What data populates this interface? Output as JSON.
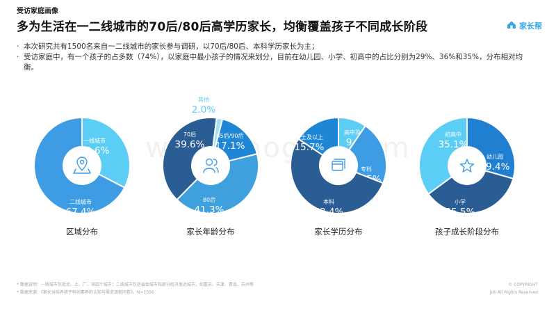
{
  "header": {
    "section_label": "受访家庭画像",
    "title": "多为生活在一二线城市的70后/80后高学历家长，均衡覆盖孩子不同成长阶段",
    "logo_text": "家长帮",
    "logo_icon": "house-cloud-icon"
  },
  "bullets": [
    "本次研究共有1500名来自一二线城市的家长参与调研，以70后/80后、本科学历家长为主；",
    "受访家庭中，有一个孩子的占多数（74%），以家庭中最小孩子的情况来划分，目前在幼儿园、小学、初高中的占比分别为29%、36%和35%，分布相对均衡。"
  ],
  "watermark": "www.baogao.com",
  "colors": {
    "dark": "#2d6fb0",
    "mid": "#3e9ce4",
    "light": "#5ccdf5",
    "navy": "#2a5d94",
    "accent": "#33a7e8"
  },
  "chart_data": [
    {
      "type": "pie",
      "title": "区域分布",
      "center_icon": "location-pin-icon",
      "slices": [
        {
          "label": "一线城市",
          "value": 32.6,
          "value_text": "32.6%",
          "color": "#5ccdf5"
        },
        {
          "label": "二线城市",
          "value": 67.4,
          "value_text": "67.4%",
          "color": "#3e9ce4"
        }
      ]
    },
    {
      "type": "pie",
      "title": "家长年龄分布",
      "center_icon": "people-icon",
      "slices": [
        {
          "label": "其他",
          "value": 2.0,
          "value_text": "2.0%",
          "color": "#9fe3f7"
        },
        {
          "label": "85后/90后",
          "value": 17.1,
          "value_text": "17.1%",
          "color": "#1f86d6"
        },
        {
          "label": "80后",
          "value": 41.3,
          "value_text": "41.3%",
          "color": "#3fa0de"
        },
        {
          "label": "70后",
          "value": 39.6,
          "value_text": "39.6%",
          "color": "#2a5d94"
        }
      ]
    },
    {
      "type": "pie",
      "title": "家长学历分布",
      "center_icon": "cards-icon",
      "slices": [
        {
          "label": "高中及以下",
          "value": 9.5,
          "value_text": "9.5%",
          "color": "#5ccdf5"
        },
        {
          "label": "专科",
          "value": 21.5,
          "value_text": "21.5%",
          "color": "#3e9ce4"
        },
        {
          "label": "本科",
          "value": 53.4,
          "value_text": "53.4%",
          "color": "#2a5d94"
        },
        {
          "label": "硕士及以上",
          "value": 15.7,
          "value_text": "15.7%",
          "color": "#1f86d6"
        }
      ]
    },
    {
      "type": "pie",
      "title": "孩子成长阶段分布",
      "center_icon": "star-icon",
      "slices": [
        {
          "label": "幼儿园",
          "value": 29.4,
          "value_text": "29.4%",
          "color": "#1f7fd0"
        },
        {
          "label": "小学",
          "value": 35.5,
          "value_text": "35.5%",
          "color": "#2a5d94"
        },
        {
          "label": "初高中",
          "value": 35.1,
          "value_text": "35.1%",
          "color": "#5ccdf5"
        }
      ]
    }
  ],
  "footnotes": [
    "* 数据说明：一线城市包括北、上、广、深四个城市；二线城市包括省会城市和部分经济发达城市，如重庆、天津、青岛、苏州等",
    "* 数据来源：《家长对培养孩子科创素养的认知与需求调查问卷》，N=1500"
  ],
  "copyright": [
    "© COPYRIGHT",
    "Job All Rights Reserved"
  ]
}
